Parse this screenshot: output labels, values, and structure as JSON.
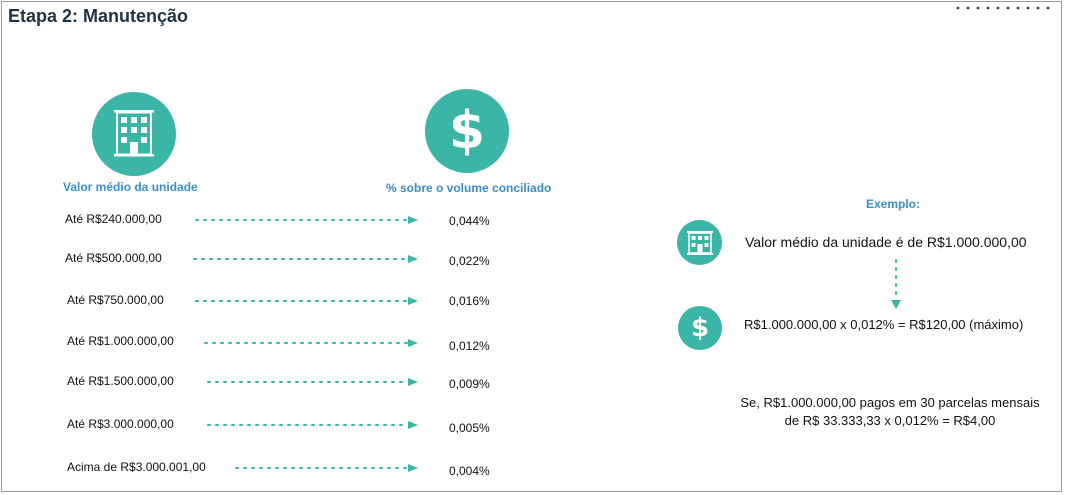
{
  "title": "Etapa 2: Manutenção",
  "left_heading": "Valor médio da unidade",
  "right_heading": "% sobre o volume conciliado",
  "rows": [
    {
      "label": "Até R$240.000,00",
      "pct": "0,044%"
    },
    {
      "label": "Até R$500.000,00",
      "pct": "0,022%"
    },
    {
      "label": "Até R$750.000,00",
      "pct": "0,016%"
    },
    {
      "label": "Até R$1.000.000,00",
      "pct": "0,012%"
    },
    {
      "label": "Até R$1.500.000,00",
      "pct": "0,009%"
    },
    {
      "label": "Até R$3.000.000,00",
      "pct": "0,005%"
    },
    {
      "label": "Acima de R$3.000.001,00",
      "pct": "0,004%"
    }
  ],
  "example": {
    "heading": "Exemplo:",
    "line1": "Valor médio da unidade é de R$1.000.000,00",
    "line2": "R$1.000.000,00 x 0,012% = R$120,00 (máximo)",
    "note_line1": "Se, R$1.000.000,00 pagos em 30 parcelas mensais",
    "note_line2": "de R$ 33.333,33 x 0,012% = R$4,00"
  },
  "icons": {
    "building": "building-icon",
    "dollar": "dollar-icon",
    "dollar_symbol": "$"
  },
  "colors": {
    "accent": "#3bb5a5",
    "heading_blue": "#3a8fc8",
    "title": "#1e3446"
  }
}
